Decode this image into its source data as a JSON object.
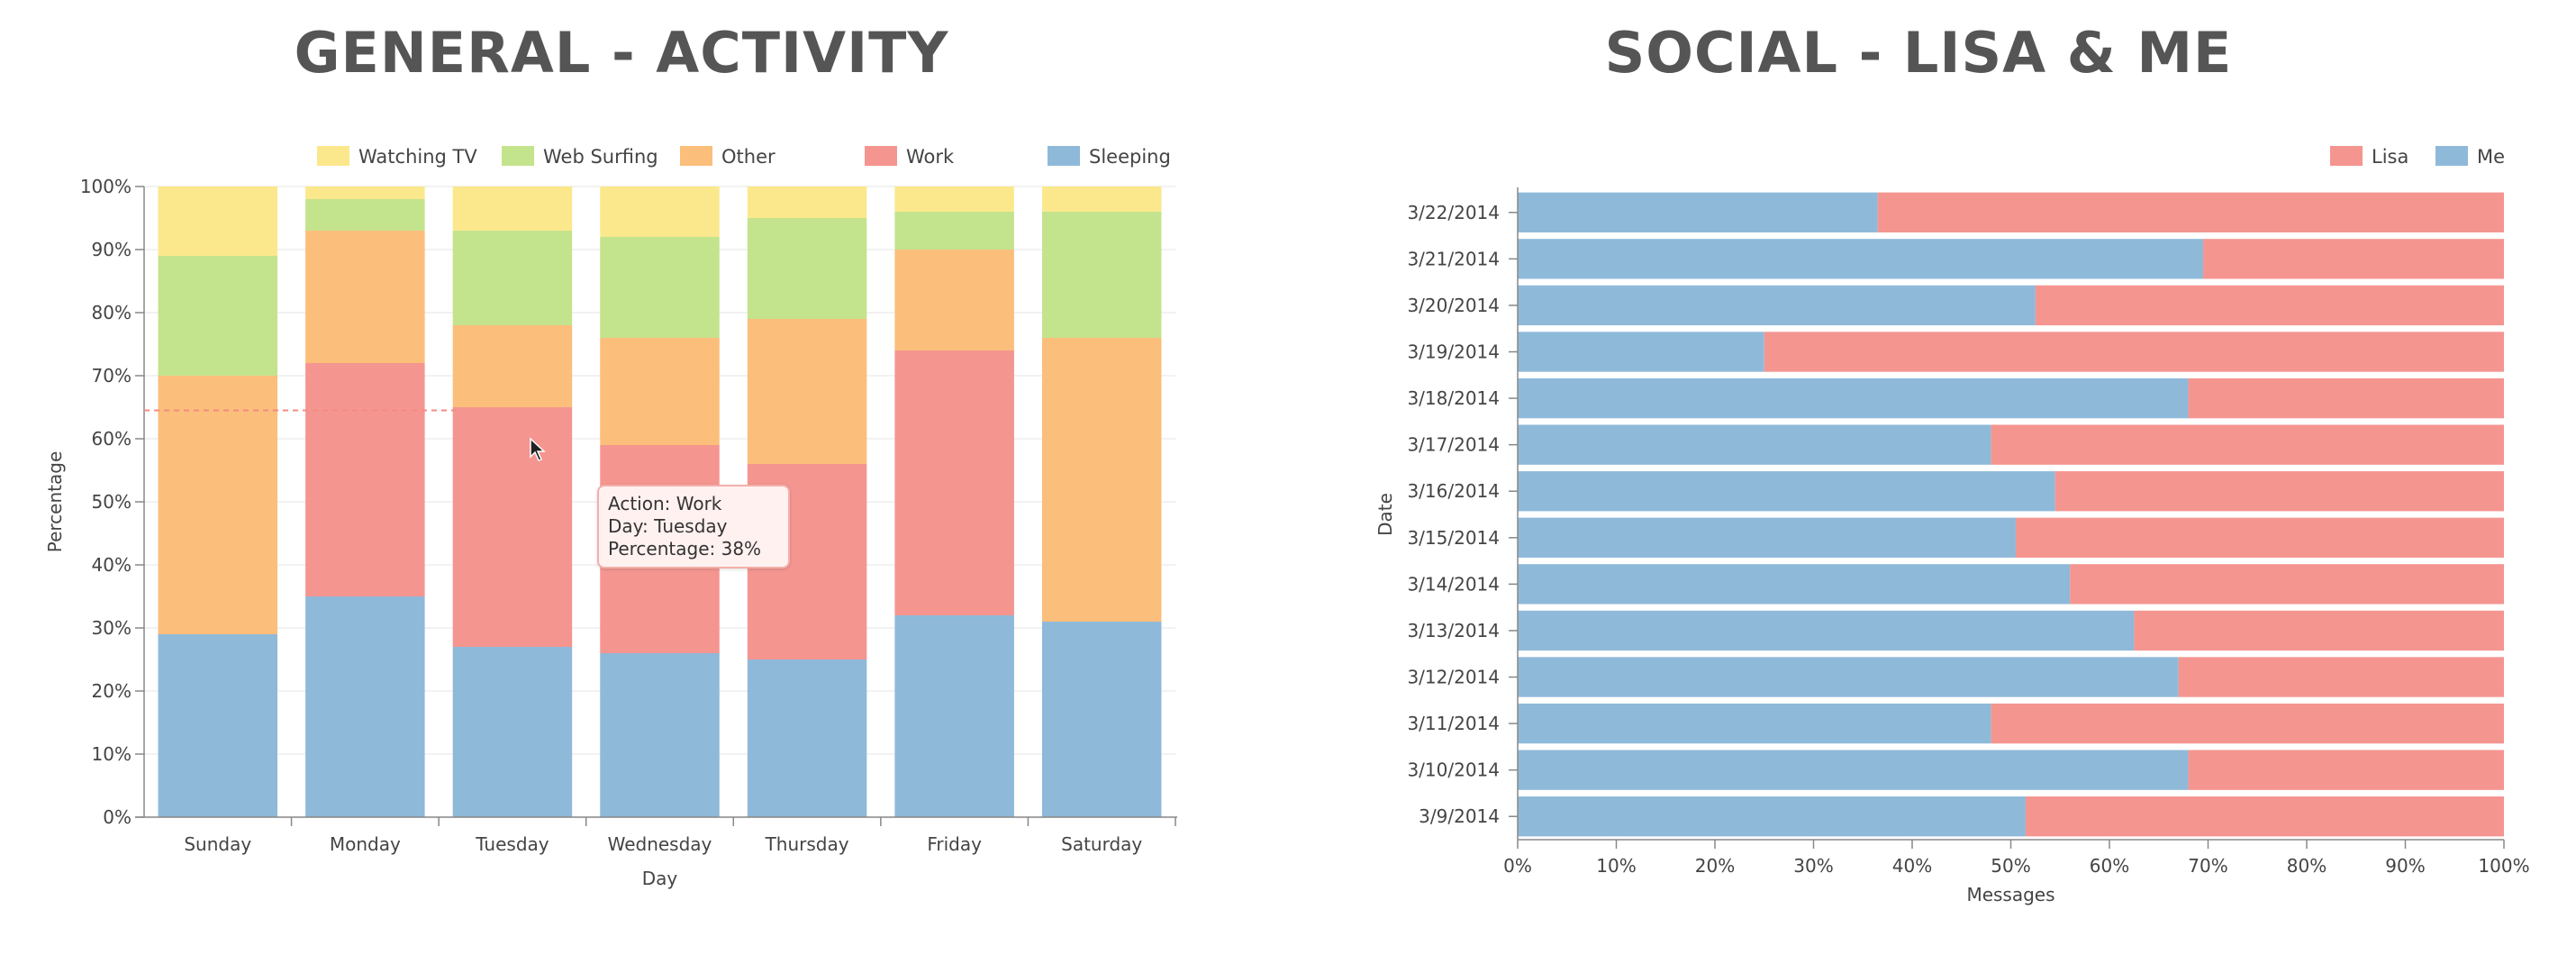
{
  "titles": {
    "left": "GENERAL - ACTIVITY",
    "right": "SOCIAL - LISA & ME"
  },
  "chart_data": [
    {
      "type": "bar",
      "stacked": true,
      "orientation": "vertical",
      "normalized": "percentage",
      "title": "GENERAL - ACTIVITY",
      "xlabel": "Day",
      "ylabel": "Percentage",
      "ylim": [
        0,
        100
      ],
      "y_ticks": [
        "0%",
        "10%",
        "20%",
        "30%",
        "40%",
        "50%",
        "60%",
        "70%",
        "80%",
        "90%",
        "100%"
      ],
      "grid": true,
      "legend_position": "top",
      "categories": [
        "Sunday",
        "Monday",
        "Tuesday",
        "Wednesday",
        "Thursday",
        "Friday",
        "Saturday"
      ],
      "series": [
        {
          "name": "Sleeping",
          "color": "#8fb9d9",
          "values": [
            29,
            35,
            27,
            26,
            25,
            32,
            31
          ]
        },
        {
          "name": "Work",
          "color": "#f59590",
          "values": [
            0,
            37,
            38,
            33,
            31,
            42,
            0
          ]
        },
        {
          "name": "Other",
          "color": "#fbbe7b",
          "values": [
            41,
            21,
            13,
            17,
            23,
            16,
            45
          ]
        },
        {
          "name": "Web Surfing",
          "color": "#c4e38d",
          "values": [
            19,
            5,
            15,
            16,
            16,
            6,
            20
          ]
        },
        {
          "name": "Watching TV",
          "color": "#fbe88d",
          "values": [
            11,
            2,
            7,
            8,
            5,
            4,
            4
          ]
        }
      ],
      "legend_order": [
        "Watching TV",
        "Web Surfing",
        "Other",
        "Work",
        "Sleeping"
      ],
      "reference_line_value": 64.5,
      "tooltip": {
        "lines": [
          "Action: Work",
          "Day: Tuesday",
          "Percentage: 38%"
        ]
      }
    },
    {
      "type": "bar",
      "stacked": true,
      "orientation": "horizontal",
      "normalized": "percentage",
      "title": "SOCIAL - LISA & ME",
      "xlabel": "Messages",
      "ylabel": "Date",
      "xlim": [
        0,
        100
      ],
      "x_ticks": [
        "0%",
        "10%",
        "20%",
        "30%",
        "40%",
        "50%",
        "60%",
        "70%",
        "80%",
        "90%",
        "100%"
      ],
      "legend_position": "top-right",
      "categories": [
        "3/22/2014",
        "3/21/2014",
        "3/20/2014",
        "3/19/2014",
        "3/18/2014",
        "3/17/2014",
        "3/16/2014",
        "3/15/2014",
        "3/14/2014",
        "3/13/2014",
        "3/12/2014",
        "3/11/2014",
        "3/10/2014",
        "3/9/2014"
      ],
      "series": [
        {
          "name": "Me",
          "color": "#8fb9d9",
          "values": [
            36.5,
            69.5,
            52.5,
            25,
            68,
            48,
            54.5,
            50.5,
            56,
            62.5,
            67,
            48,
            68,
            51.5
          ]
        },
        {
          "name": "Lisa",
          "color": "#f59590",
          "values": [
            63.5,
            30.5,
            47.5,
            75,
            32,
            52,
            45.5,
            49.5,
            44,
            37.5,
            33,
            52,
            32,
            48.5
          ]
        }
      ],
      "legend_order": [
        "Lisa",
        "Me"
      ]
    }
  ]
}
